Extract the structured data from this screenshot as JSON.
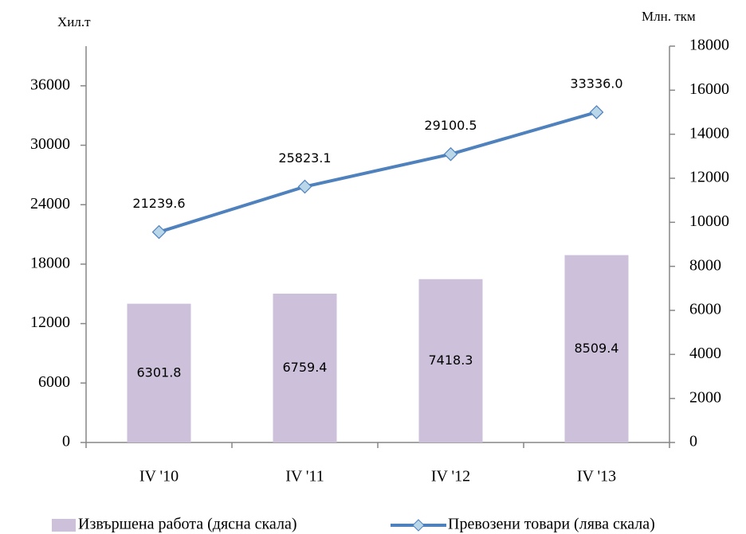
{
  "chart_data": {
    "type": "bar",
    "y_label": "Хил.т",
    "y2_label": "Млн. ткм",
    "categories": [
      "IV '10",
      "IV '11",
      "IV '12",
      "IV '13"
    ],
    "series": [
      {
        "name": "Извършена работа (дясна скала)",
        "type": "bar",
        "axis": "y2",
        "color": "#ccc0da",
        "values": [
          6301.8,
          6759.4,
          7418.3,
          8509.4
        ]
      },
      {
        "name": "Превозени товари (лява скала)",
        "type": "line",
        "axis": "y",
        "color": "#4f81bd",
        "values": [
          21239.6,
          25823.1,
          29100.5,
          33336
        ],
        "value_labels": [
          "21239.6",
          "25823.1",
          "29100.5",
          "33336.0"
        ]
      }
    ],
    "ylim": [
      0,
      40000
    ],
    "yticks": [
      0,
      6000,
      12000,
      18000,
      24000,
      30000,
      36000
    ],
    "y2lim": [
      0,
      18000
    ],
    "y2ticks": [
      0,
      2000,
      4000,
      6000,
      8000,
      10000,
      12000,
      14000,
      16000,
      18000
    ],
    "grid": false,
    "legend": "bottom"
  }
}
